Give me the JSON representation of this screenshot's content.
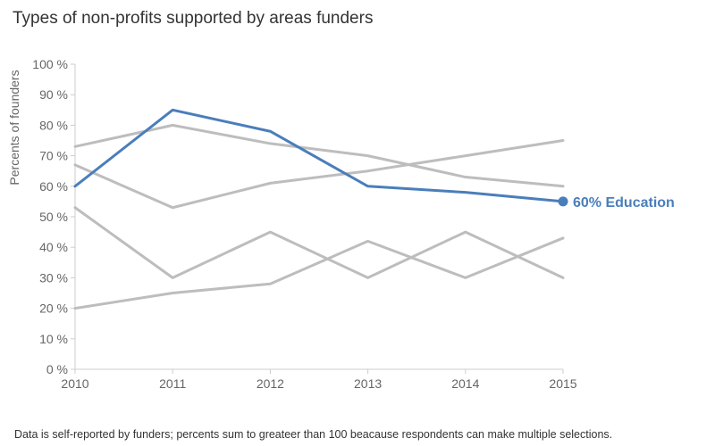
{
  "chart_data": {
    "type": "line",
    "title": "Types of non-profits supported by areas funders",
    "ylabel": "Percents of founders",
    "xlabel": "",
    "x": [
      2010,
      2011,
      2012,
      2013,
      2014,
      2015
    ],
    "y_ticks": [
      "0 %",
      "10 %",
      "20 %",
      "30 %",
      "40 %",
      "50 %",
      "60 %",
      "70 %",
      "80 %",
      "90 %",
      "100 %"
    ],
    "ylim": [
      0,
      100
    ],
    "grid": false,
    "series": [
      {
        "values": [
          73,
          80,
          74,
          70,
          63,
          60
        ],
        "color": "#bdbdbd"
      },
      {
        "values": [
          67,
          53,
          61,
          65,
          70,
          75
        ],
        "color": "#bdbdbd"
      },
      {
        "values": [
          53,
          30,
          45,
          30,
          45,
          30
        ],
        "color": "#bdbdbd"
      },
      {
        "values": [
          20,
          25,
          28,
          42,
          30,
          43
        ],
        "color": "#bdbdbd"
      },
      {
        "name": "Education",
        "values": [
          60,
          85,
          78,
          60,
          58,
          55
        ],
        "color": "#4a7ebb",
        "highlight": true
      }
    ],
    "annotation": "60% Education",
    "footnote": "Data is self-reported by funders; percents sum to greateer than 100 beacause respondents can make multiple selections."
  }
}
